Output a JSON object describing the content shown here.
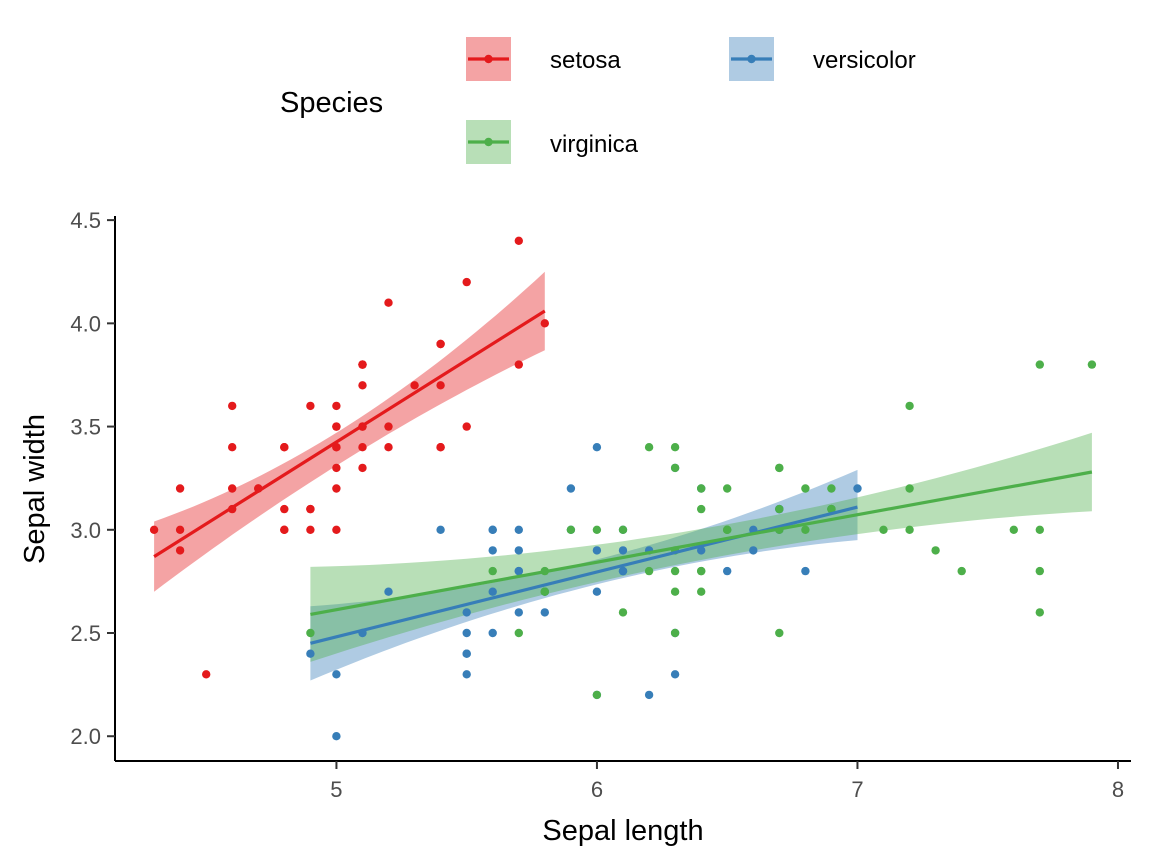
{
  "chart_data": {
    "type": "scatter",
    "title": "",
    "xlabel": "Sepal length",
    "ylabel": "Sepal width",
    "xlim": [
      4.15,
      8.05
    ],
    "ylim": [
      1.88,
      4.52
    ],
    "xticks": [
      5,
      6,
      7,
      8
    ],
    "yticks": [
      2.0,
      2.5,
      3.0,
      3.5,
      4.0,
      4.5
    ],
    "xtick_labels": [
      "5",
      "6",
      "7",
      "8"
    ],
    "ytick_labels": [
      "2.0",
      "2.5",
      "3.0",
      "3.5",
      "4.0",
      "4.5"
    ],
    "grid": false,
    "legend": {
      "title": "Species",
      "position": "top",
      "entries": [
        "setosa",
        "versicolor",
        "virginica"
      ]
    },
    "series": [
      {
        "name": "setosa",
        "color": "#e41a1c",
        "points": [
          [
            5.1,
            3.5
          ],
          [
            4.9,
            3.0
          ],
          [
            4.7,
            3.2
          ],
          [
            4.6,
            3.1
          ],
          [
            5.0,
            3.6
          ],
          [
            5.4,
            3.9
          ],
          [
            4.6,
            3.4
          ],
          [
            5.0,
            3.4
          ],
          [
            4.4,
            2.9
          ],
          [
            4.9,
            3.1
          ],
          [
            5.4,
            3.7
          ],
          [
            4.8,
            3.4
          ],
          [
            4.8,
            3.0
          ],
          [
            4.3,
            3.0
          ],
          [
            5.8,
            4.0
          ],
          [
            5.7,
            4.4
          ],
          [
            5.4,
            3.9
          ],
          [
            5.1,
            3.5
          ],
          [
            5.7,
            3.8
          ],
          [
            5.1,
            3.8
          ],
          [
            5.4,
            3.4
          ],
          [
            5.1,
            3.7
          ],
          [
            4.6,
            3.6
          ],
          [
            5.1,
            3.3
          ],
          [
            4.8,
            3.4
          ],
          [
            5.0,
            3.0
          ],
          [
            5.0,
            3.4
          ],
          [
            5.2,
            3.5
          ],
          [
            5.2,
            3.4
          ],
          [
            4.7,
            3.2
          ],
          [
            4.8,
            3.1
          ],
          [
            5.4,
            3.4
          ],
          [
            5.2,
            4.1
          ],
          [
            5.5,
            4.2
          ],
          [
            4.9,
            3.1
          ],
          [
            5.0,
            3.2
          ],
          [
            5.5,
            3.5
          ],
          [
            4.9,
            3.6
          ],
          [
            4.4,
            3.0
          ],
          [
            5.1,
            3.4
          ],
          [
            5.0,
            3.5
          ],
          [
            4.5,
            2.3
          ],
          [
            4.4,
            3.2
          ],
          [
            5.0,
            3.5
          ],
          [
            5.1,
            3.8
          ],
          [
            4.8,
            3.0
          ],
          [
            5.1,
            3.8
          ],
          [
            4.6,
            3.2
          ],
          [
            5.3,
            3.7
          ],
          [
            5.0,
            3.3
          ]
        ],
        "fit": {
          "x": [
            4.3,
            5.8
          ],
          "y": [
            2.87,
            4.06
          ]
        },
        "band": {
          "x": [
            4.3,
            5.05,
            5.8
          ],
          "lower": [
            2.7,
            3.35,
            3.87
          ],
          "upper": [
            3.04,
            3.51,
            4.25
          ]
        }
      },
      {
        "name": "versicolor",
        "color": "#377eb8",
        "points": [
          [
            7.0,
            3.2
          ],
          [
            6.4,
            3.2
          ],
          [
            6.9,
            3.1
          ],
          [
            5.5,
            2.3
          ],
          [
            6.5,
            2.8
          ],
          [
            5.7,
            2.8
          ],
          [
            6.3,
            3.3
          ],
          [
            4.9,
            2.4
          ],
          [
            6.6,
            2.9
          ],
          [
            5.2,
            2.7
          ],
          [
            5.0,
            2.0
          ],
          [
            5.9,
            3.0
          ],
          [
            6.0,
            2.2
          ],
          [
            6.1,
            2.9
          ],
          [
            5.6,
            2.9
          ],
          [
            6.7,
            3.1
          ],
          [
            5.6,
            3.0
          ],
          [
            5.8,
            2.7
          ],
          [
            6.2,
            2.2
          ],
          [
            5.6,
            2.5
          ],
          [
            5.9,
            3.2
          ],
          [
            6.1,
            2.8
          ],
          [
            6.3,
            2.5
          ],
          [
            6.1,
            2.8
          ],
          [
            6.4,
            2.9
          ],
          [
            6.6,
            3.0
          ],
          [
            6.8,
            2.8
          ],
          [
            6.7,
            3.0
          ],
          [
            6.0,
            2.9
          ],
          [
            5.7,
            2.6
          ],
          [
            5.5,
            2.4
          ],
          [
            5.5,
            2.4
          ],
          [
            5.8,
            2.7
          ],
          [
            6.0,
            2.7
          ],
          [
            5.4,
            3.0
          ],
          [
            6.0,
            3.4
          ],
          [
            6.7,
            3.1
          ],
          [
            6.3,
            2.3
          ],
          [
            5.6,
            3.0
          ],
          [
            5.5,
            2.5
          ],
          [
            5.5,
            2.6
          ],
          [
            6.1,
            3.0
          ],
          [
            5.8,
            2.6
          ],
          [
            5.0,
            2.3
          ],
          [
            5.6,
            2.7
          ],
          [
            5.7,
            3.0
          ],
          [
            5.7,
            2.9
          ],
          [
            6.2,
            2.9
          ],
          [
            5.1,
            2.5
          ],
          [
            5.7,
            2.8
          ]
        ],
        "fit": {
          "x": [
            4.9,
            7.0
          ],
          "y": [
            2.45,
            3.11
          ]
        },
        "band": {
          "x": [
            4.9,
            5.95,
            7.0
          ],
          "lower": [
            2.27,
            2.72,
            2.95
          ],
          "upper": [
            2.63,
            2.84,
            3.29
          ]
        }
      },
      {
        "name": "virginica",
        "color": "#4daf4a",
        "points": [
          [
            6.3,
            3.3
          ],
          [
            5.8,
            2.7
          ],
          [
            7.1,
            3.0
          ],
          [
            6.3,
            2.9
          ],
          [
            6.5,
            3.0
          ],
          [
            7.6,
            3.0
          ],
          [
            4.9,
            2.5
          ],
          [
            7.3,
            2.9
          ],
          [
            6.7,
            2.5
          ],
          [
            7.2,
            3.6
          ],
          [
            6.5,
            3.2
          ],
          [
            6.4,
            2.7
          ],
          [
            6.8,
            3.0
          ],
          [
            5.7,
            2.5
          ],
          [
            5.8,
            2.8
          ],
          [
            6.4,
            3.2
          ],
          [
            6.5,
            3.0
          ],
          [
            7.7,
            3.8
          ],
          [
            7.7,
            2.6
          ],
          [
            6.0,
            2.2
          ],
          [
            6.9,
            3.2
          ],
          [
            5.6,
            2.8
          ],
          [
            7.7,
            2.8
          ],
          [
            6.3,
            2.7
          ],
          [
            6.7,
            3.3
          ],
          [
            7.2,
            3.2
          ],
          [
            6.2,
            2.8
          ],
          [
            6.1,
            3.0
          ],
          [
            6.4,
            2.8
          ],
          [
            7.2,
            3.0
          ],
          [
            7.4,
            2.8
          ],
          [
            7.9,
            3.8
          ],
          [
            6.4,
            2.8
          ],
          [
            6.3,
            2.8
          ],
          [
            6.1,
            2.6
          ],
          [
            7.7,
            3.0
          ],
          [
            6.3,
            3.4
          ],
          [
            6.4,
            3.1
          ],
          [
            6.0,
            3.0
          ],
          [
            6.9,
            3.1
          ],
          [
            6.7,
            3.1
          ],
          [
            6.9,
            3.1
          ],
          [
            5.8,
            2.7
          ],
          [
            6.8,
            3.2
          ],
          [
            6.7,
            3.3
          ],
          [
            6.7,
            3.0
          ],
          [
            6.3,
            2.5
          ],
          [
            6.5,
            3.0
          ],
          [
            6.2,
            3.4
          ],
          [
            5.9,
            3.0
          ]
        ],
        "fit": {
          "x": [
            4.9,
            7.9
          ],
          "y": [
            2.59,
            3.28
          ]
        },
        "band": {
          "x": [
            4.9,
            6.6,
            7.9
          ],
          "lower": [
            2.36,
            2.9,
            3.09
          ],
          "upper": [
            2.82,
            3.05,
            3.47
          ]
        }
      }
    ]
  }
}
